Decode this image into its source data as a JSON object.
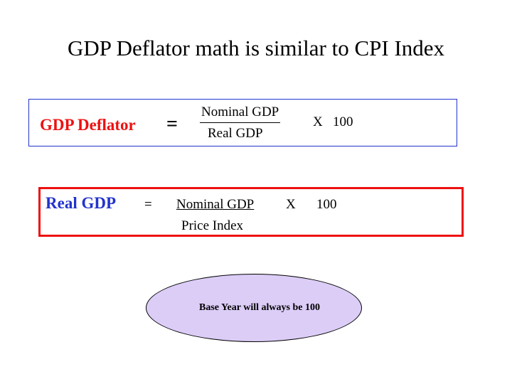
{
  "slide": {
    "title": "GDP Deflator math is similar to CPI Index"
  },
  "deflator_formula": {
    "label": "GDP Deflator",
    "equals": "=",
    "numerator": "Nominal GDP",
    "denominator": "Real GDP",
    "times": "X",
    "multiplier": "100",
    "label_color": "#ee1111",
    "border_color": "#2233cc"
  },
  "real_gdp_formula": {
    "label": "Real GDP",
    "equals": "=",
    "numerator": "Nominal GDP",
    "times": "X",
    "multiplier": "100",
    "denominator": "Price Index",
    "label_color": "#2233cc",
    "border_color": "#ee1111"
  },
  "note": {
    "text": "Base Year will always be 100",
    "fill_color": "#dccdf7"
  }
}
